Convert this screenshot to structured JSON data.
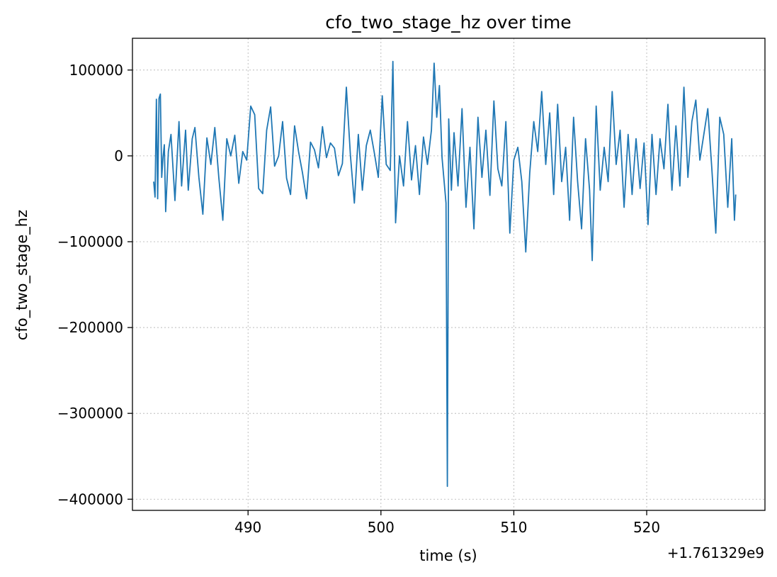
{
  "chart_data": {
    "type": "line",
    "title": "cfo_two_stage_hz over time",
    "xlabel": "time (s)",
    "ylabel": "cfo_two_stage_hz",
    "x_offset_label": "+1.761329e9",
    "xlim": [
      481.3,
      528.9
    ],
    "ylim": [
      -413000,
      137000
    ],
    "x_ticks": [
      490,
      500,
      510,
      520
    ],
    "x_tick_labels": [
      "490",
      "500",
      "510",
      "520"
    ],
    "y_ticks": [
      100000,
      0,
      -100000,
      -200000,
      -300000,
      -400000
    ],
    "y_tick_labels": [
      "100000",
      "0",
      "−100000",
      "−200000",
      "−300000",
      "−400000"
    ],
    "grid": true,
    "legend": "none",
    "series": [
      {
        "color": "#1f77b4",
        "x": [
          482.9,
          483.0,
          483.1,
          483.2,
          483.3,
          483.4,
          483.5,
          483.6,
          483.7,
          483.8,
          484.0,
          484.2,
          484.5,
          484.8,
          485.0,
          485.3,
          485.5,
          485.8,
          486.0,
          486.3,
          486.6,
          486.9,
          487.2,
          487.5,
          487.8,
          488.1,
          488.4,
          488.7,
          489.0,
          489.3,
          489.6,
          489.9,
          490.2,
          490.5,
          490.8,
          491.1,
          491.4,
          491.7,
          492.0,
          492.3,
          492.6,
          492.9,
          493.2,
          493.5,
          493.8,
          494.1,
          494.4,
          494.7,
          495.0,
          495.3,
          495.6,
          495.9,
          496.2,
          496.5,
          496.8,
          497.1,
          497.4,
          497.7,
          498.0,
          498.3,
          498.6,
          498.9,
          499.2,
          499.5,
          499.8,
          500.1,
          500.4,
          500.7,
          500.9,
          501.1,
          501.4,
          501.7,
          502.0,
          502.3,
          502.6,
          502.9,
          503.2,
          503.5,
          503.8,
          504.0,
          504.2,
          504.4,
          504.6,
          504.9,
          505.0,
          505.1,
          505.3,
          505.5,
          505.8,
          506.1,
          506.4,
          506.7,
          507.0,
          507.3,
          507.6,
          507.9,
          508.2,
          508.5,
          508.8,
          509.1,
          509.4,
          509.7,
          510.0,
          510.3,
          510.6,
          510.9,
          511.2,
          511.5,
          511.8,
          512.1,
          512.4,
          512.7,
          513.0,
          513.3,
          513.6,
          513.9,
          514.2,
          514.5,
          514.8,
          515.1,
          515.4,
          515.7,
          515.9,
          516.2,
          516.5,
          516.8,
          517.1,
          517.4,
          517.7,
          518.0,
          518.3,
          518.6,
          518.9,
          519.2,
          519.5,
          519.8,
          520.1,
          520.4,
          520.7,
          521.0,
          521.3,
          521.6,
          521.9,
          522.2,
          522.5,
          522.8,
          523.1,
          523.4,
          523.7,
          524.0,
          524.3,
          524.6,
          524.9,
          525.2,
          525.5,
          525.8,
          526.1,
          526.4,
          526.6,
          526.7
        ],
        "y": [
          -30000,
          -48000,
          66000,
          -50000,
          67000,
          72000,
          -25000,
          -2000,
          13000,
          -65000,
          5000,
          25000,
          -52000,
          40000,
          -35000,
          30000,
          -40000,
          20000,
          33000,
          -25000,
          -68000,
          21000,
          -10000,
          33000,
          -25000,
          -75000,
          20000,
          0,
          24000,
          -32000,
          5000,
          -5000,
          58000,
          48000,
          -38000,
          -44000,
          30000,
          57000,
          -12000,
          0,
          40000,
          -26000,
          -45000,
          35000,
          5000,
          -20000,
          -50000,
          16000,
          7000,
          -14000,
          34000,
          -2000,
          15000,
          9000,
          -23000,
          -9000,
          80000,
          1000,
          -55000,
          25000,
          -40000,
          12000,
          30000,
          4000,
          -25000,
          70000,
          -10000,
          -17000,
          110000,
          -78000,
          0,
          -35000,
          40000,
          -28000,
          12000,
          -45000,
          22000,
          -10000,
          30000,
          108000,
          45000,
          82000,
          -2000,
          -55000,
          -385000,
          43000,
          -40000,
          27000,
          -35000,
          55000,
          -60000,
          10000,
          -85000,
          45000,
          -25000,
          30000,
          -46000,
          64000,
          -15000,
          -35000,
          40000,
          -90000,
          -5000,
          10000,
          -30000,
          -112000,
          -20000,
          40000,
          5000,
          75000,
          -10000,
          50000,
          -45000,
          60000,
          -30000,
          10000,
          -75000,
          45000,
          -30000,
          -85000,
          20000,
          -40000,
          -122000,
          58000,
          -40000,
          10000,
          -30000,
          75000,
          -10000,
          30000,
          -60000,
          25000,
          -45000,
          20000,
          -38000,
          15000,
          -80000,
          25000,
          -45000,
          20000,
          -15000,
          60000,
          -40000,
          35000,
          -35000,
          80000,
          -25000,
          40000,
          65000,
          -5000,
          25000,
          55000,
          -15000,
          -90000,
          45000,
          25000,
          -60000,
          20000,
          -75000,
          -45000
        ]
      }
    ]
  }
}
